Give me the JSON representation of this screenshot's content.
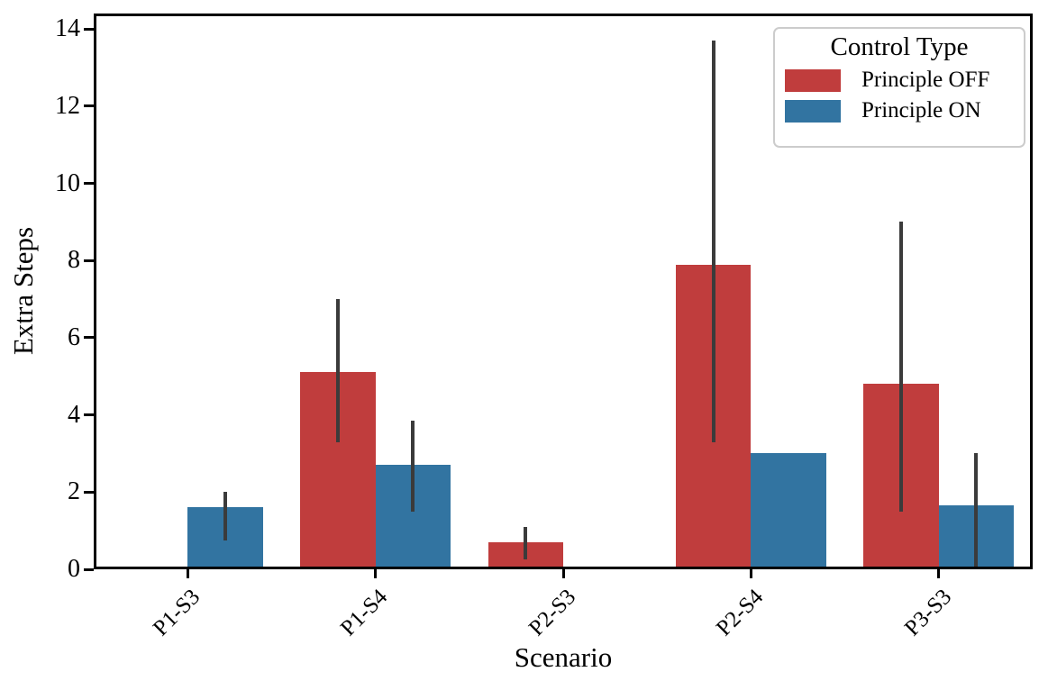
{
  "chart_data": {
    "type": "bar",
    "title": "",
    "xlabel": "Scenario",
    "ylabel": "Extra Steps",
    "categories": [
      "P1-S3",
      "P1-S4",
      "P2-S3",
      "P2-S4",
      "P3-S3"
    ],
    "series": [
      {
        "name": "Principle OFF",
        "color": "#c03d3d",
        "values": [
          0,
          5.1,
          0.7,
          7.9,
          4.8
        ],
        "error_intervals": [
          null,
          [
            3.3,
            7.0
          ],
          [
            0.25,
            1.1
          ],
          [
            3.3,
            13.7
          ],
          [
            1.5,
            9.0
          ]
        ]
      },
      {
        "name": "Principle ON",
        "color": "#3274a1",
        "values": [
          1.6,
          2.7,
          0,
          3.0,
          1.65
        ],
        "error_intervals": [
          [
            0.75,
            2.0
          ],
          [
            1.5,
            3.85
          ],
          null,
          null,
          [
            0.0,
            3.0
          ]
        ]
      }
    ],
    "ylim": [
      0,
      14.4
    ],
    "yticks": [
      0,
      2,
      4,
      6,
      8,
      10,
      12,
      14
    ],
    "legend": {
      "title": "Control Type",
      "position": "upper right"
    },
    "error_bar_color": "#3b3b3b",
    "axis_color": "#000000",
    "grid": false,
    "bar_group_width_fraction": 0.8
  }
}
